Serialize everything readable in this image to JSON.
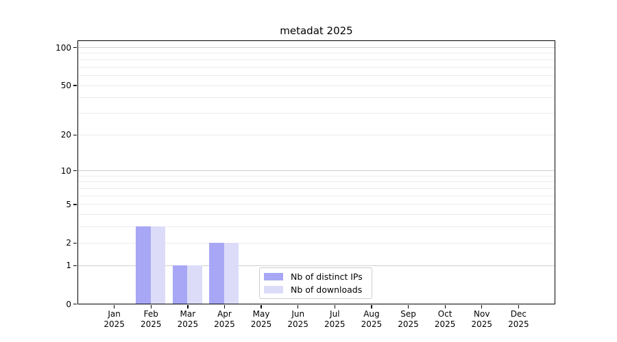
{
  "chart_data": {
    "type": "bar",
    "title": "metadat 2025",
    "year": "2025",
    "categories": [
      "Jan",
      "Feb",
      "Mar",
      "Apr",
      "May",
      "Jun",
      "Jul",
      "Aug",
      "Sep",
      "Oct",
      "Nov",
      "Dec"
    ],
    "series": [
      {
        "name": "Nb of distinct IPs",
        "color": "#a7a7f5",
        "values": [
          0,
          3,
          1,
          2,
          0,
          0,
          0,
          0,
          0,
          0,
          0,
          0
        ]
      },
      {
        "name": "Nb of downloads",
        "color": "#dcdcf9",
        "values": [
          0,
          3,
          1,
          2,
          0,
          0,
          0,
          0,
          0,
          0,
          0,
          0
        ]
      }
    ],
    "y_ticks": [
      0,
      1,
      2,
      5,
      10,
      20,
      50,
      100
    ],
    "y_minor_gridlines": [
      2,
      3,
      4,
      5,
      6,
      7,
      8,
      9,
      20,
      30,
      40,
      50,
      60,
      70,
      80,
      90
    ],
    "y_major_gridlines": [
      1,
      10,
      100
    ],
    "y_scale": "log1p",
    "ylim": [
      0,
      115
    ],
    "grid": "both",
    "legend_position": "lower-center",
    "colors": {
      "major_grid": "#cfcfcf",
      "minor_grid": "#ececec",
      "axis": "#000000"
    }
  }
}
